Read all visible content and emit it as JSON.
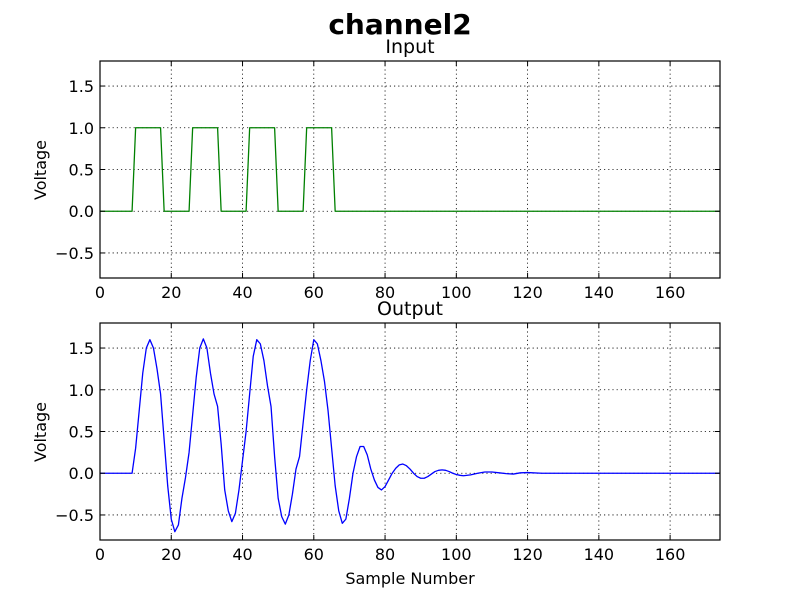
{
  "chart_data": [
    {
      "type": "line",
      "title": "Input",
      "xlabel": "",
      "ylabel": "Voltage",
      "xlim": [
        0,
        174
      ],
      "ylim": [
        -0.8,
        1.8
      ],
      "xticks": [
        "0",
        "20",
        "40",
        "60",
        "80",
        "100",
        "120",
        "140",
        "160"
      ],
      "yticks": [
        "−0.5",
        "0.0",
        "0.5",
        "1.0",
        "1.5"
      ],
      "grid": true,
      "series": [
        {
          "color": "#008000",
          "x": [
            0,
            9,
            10,
            17,
            18,
            25,
            26,
            33,
            34,
            41,
            42,
            49,
            50,
            57,
            58,
            65,
            66,
            174
          ],
          "y": [
            0,
            0,
            1,
            1,
            0,
            0,
            1,
            1,
            0,
            0,
            1,
            1,
            0,
            0,
            1,
            1,
            0,
            0
          ]
        }
      ]
    },
    {
      "type": "line",
      "title": "Output",
      "xlabel": "Sample Number",
      "ylabel": "Voltage",
      "xlim": [
        0,
        174
      ],
      "ylim": [
        -0.8,
        1.8
      ],
      "xticks": [
        "0",
        "20",
        "40",
        "60",
        "80",
        "100",
        "120",
        "140",
        "160"
      ],
      "yticks": [
        "−0.5",
        "0.0",
        "0.5",
        "1.0",
        "1.5"
      ],
      "grid": true,
      "series": [
        {
          "color": "#0000ff",
          "x": [
            0,
            9,
            10,
            11,
            12,
            13,
            14,
            15,
            16,
            17,
            18,
            19,
            20,
            21,
            22,
            23,
            24,
            25,
            26,
            27,
            28,
            29,
            30,
            31,
            32,
            33,
            34,
            35,
            36,
            37,
            38,
            39,
            40,
            41,
            42,
            43,
            44,
            45,
            46,
            47,
            48,
            49,
            50,
            51,
            52,
            53,
            54,
            55,
            56,
            57,
            58,
            59,
            60,
            61,
            62,
            63,
            64,
            65,
            66,
            67,
            68,
            69,
            70,
            71,
            72,
            73,
            74,
            75,
            76,
            77,
            78,
            79,
            80,
            81,
            82,
            83,
            84,
            85,
            86,
            87,
            88,
            89,
            90,
            91,
            92,
            93,
            94,
            95,
            96,
            97,
            98,
            99,
            100,
            101,
            102,
            104,
            106,
            108,
            110,
            112,
            114,
            116,
            118,
            120,
            124,
            130,
            140,
            174
          ],
          "y": [
            0,
            0,
            0.3,
            0.75,
            1.2,
            1.5,
            1.6,
            1.5,
            1.25,
            0.95,
            0.4,
            -0.15,
            -0.55,
            -0.7,
            -0.62,
            -0.3,
            -0.05,
            0.25,
            0.7,
            1.15,
            1.5,
            1.61,
            1.5,
            1.2,
            0.95,
            0.8,
            0.35,
            -0.2,
            -0.45,
            -0.58,
            -0.48,
            -0.2,
            0.15,
            0.5,
            0.95,
            1.4,
            1.6,
            1.55,
            1.35,
            1.05,
            0.8,
            0.2,
            -0.3,
            -0.52,
            -0.61,
            -0.5,
            -0.25,
            0.05,
            0.2,
            0.6,
            1.0,
            1.35,
            1.6,
            1.55,
            1.35,
            1.1,
            0.75,
            0.3,
            -0.15,
            -0.45,
            -0.6,
            -0.55,
            -0.3,
            0.0,
            0.2,
            0.32,
            0.32,
            0.22,
            0.05,
            -0.08,
            -0.17,
            -0.2,
            -0.16,
            -0.08,
            0.0,
            0.06,
            0.1,
            0.11,
            0.09,
            0.05,
            0.0,
            -0.04,
            -0.06,
            -0.06,
            -0.04,
            -0.01,
            0.02,
            0.035,
            0.04,
            0.035,
            0.02,
            0.0,
            -0.015,
            -0.025,
            -0.03,
            -0.02,
            0.0,
            0.015,
            0.015,
            0.005,
            -0.005,
            -0.01,
            0.005,
            0.008,
            0.0,
            0.0,
            0.0,
            0.0
          ]
        }
      ]
    }
  ],
  "figure": {
    "suptitle": "channel2"
  }
}
